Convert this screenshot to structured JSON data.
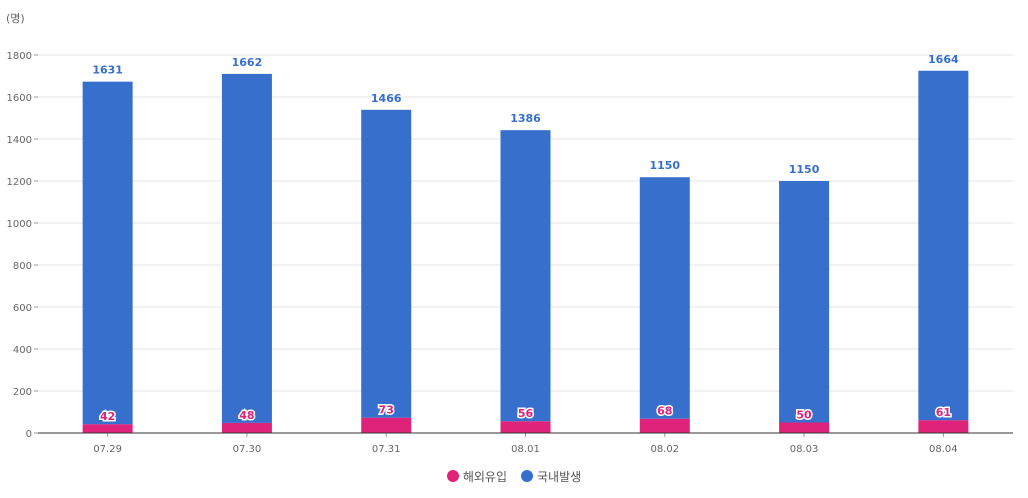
{
  "chart_data": {
    "type": "bar",
    "stacked": true,
    "unit_label": "(명)",
    "categories": [
      "07.29",
      "07.30",
      "07.31",
      "08.01",
      "08.02",
      "08.03",
      "08.04"
    ],
    "series": [
      {
        "name": "해외유입",
        "color": "#e0237a",
        "values": [
          42,
          48,
          73,
          56,
          68,
          50,
          61
        ]
      },
      {
        "name": "국내발생",
        "color": "#3670cc",
        "values": [
          1631,
          1662,
          1466,
          1386,
          1150,
          1150,
          1664
        ]
      }
    ],
    "ylim": [
      0,
      1800
    ],
    "yticks": [
      "0",
      "200",
      "400",
      "600",
      "800",
      "1000",
      "1200",
      "1400",
      "1600",
      "1800"
    ],
    "grid": true,
    "legend_position": "bottom-center"
  }
}
